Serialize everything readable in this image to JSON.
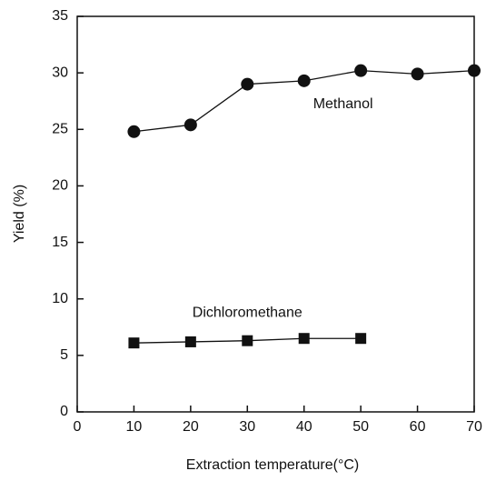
{
  "chart_data": {
    "type": "line",
    "x_label": "Extraction temperature(°C)",
    "y_label": "Yield (%)",
    "x": [
      10,
      20,
      30,
      40,
      50,
      60,
      70
    ],
    "series": [
      {
        "name": "Methanol",
        "color": "#111111",
        "marker": "circle",
        "values": [
          24.8,
          25.4,
          29.0,
          29.3,
          30.2,
          29.9,
          30.2
        ]
      },
      {
        "name": "Dichloromethane",
        "color": "#111111",
        "marker": "square",
        "values": [
          6.1,
          6.2,
          6.3,
          6.5,
          6.5,
          null,
          null
        ]
      }
    ],
    "xlim": [
      0,
      70
    ],
    "xticks": [
      0,
      10,
      20,
      30,
      40,
      50,
      60,
      70
    ],
    "ylim": [
      0,
      35
    ],
    "yticks": [
      0,
      5,
      10,
      15,
      20,
      25,
      30,
      35
    ],
    "grid": false
  }
}
